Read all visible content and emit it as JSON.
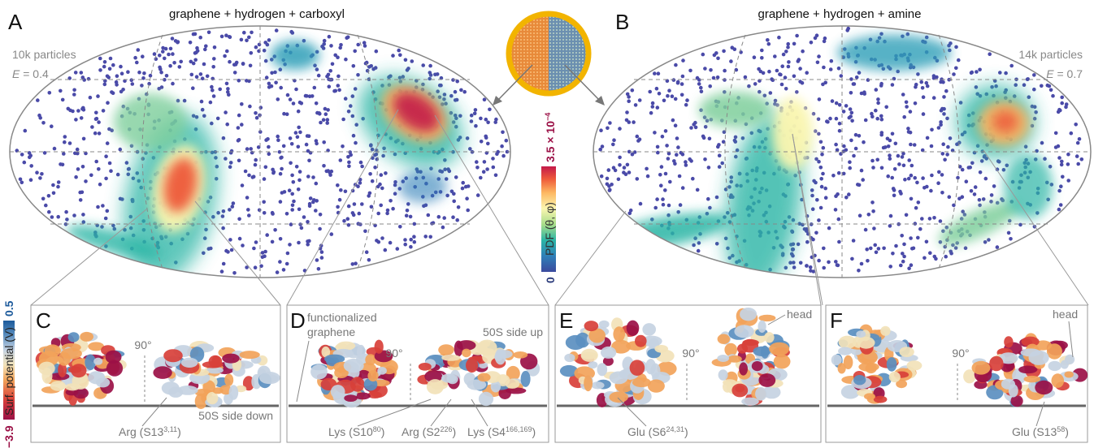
{
  "panels": {
    "A": {
      "letter": "A",
      "title": "graphene + hydrogen + carboxyl",
      "particles": "10k particles",
      "E_var": "E",
      "E_val": " = 0.4"
    },
    "B": {
      "letter": "B",
      "title": "graphene + hydrogen + amine",
      "particles": "14k particles",
      "E_var": "E",
      "E_val": " = 0.7"
    },
    "C": {
      "letter": "C",
      "rotation": "90°",
      "label_side": "50S side down",
      "residue": "Arg (S13",
      "residue_sup": "3,11",
      "residue_end": ")"
    },
    "D": {
      "letter": "D",
      "annot1": "functionalized",
      "annot2": "graphene",
      "rotation": "90°",
      "label_side": "50S side up",
      "res1": "Lys (S10",
      "res1_sup": "80",
      "res2": "Arg (S2",
      "res2_sup": "226",
      "res3": "Lys (S4",
      "res3_sup": "166,169",
      "res_end": ")"
    },
    "E": {
      "letter": "E",
      "rotation": "90°",
      "head": "head",
      "residue": "Glu (S6",
      "residue_sup": "24,31",
      "residue_end": ")"
    },
    "F": {
      "letter": "F",
      "rotation": "90°",
      "head": "head",
      "residue": "Glu (S13",
      "residue_sup": "58",
      "residue_end": ")"
    }
  },
  "pdf_colorbar": {
    "label": "PDF (θ, φ)",
    "min": "0",
    "max": "3.5 × 10",
    "max_exp": "−4"
  },
  "surf_colorbar": {
    "label": "Surf. potential (V)",
    "min": "−3.9",
    "max": "0.5"
  },
  "colors": {
    "pdf_scale": [
      "#3b4a9e",
      "#2f7fb8",
      "#2bb5a5",
      "#a8dd8a",
      "#fbf6b0",
      "#fdb862",
      "#ee5a3b",
      "#c41a4a"
    ],
    "surf_scale": [
      "#9b1046",
      "#d8403a",
      "#f2a35a",
      "#f2e2b8",
      "#c6d3e2",
      "#5b8fc0",
      "#1c5a9b"
    ],
    "scatter_points": "#4a4aa8",
    "ring": "#f2b400"
  }
}
